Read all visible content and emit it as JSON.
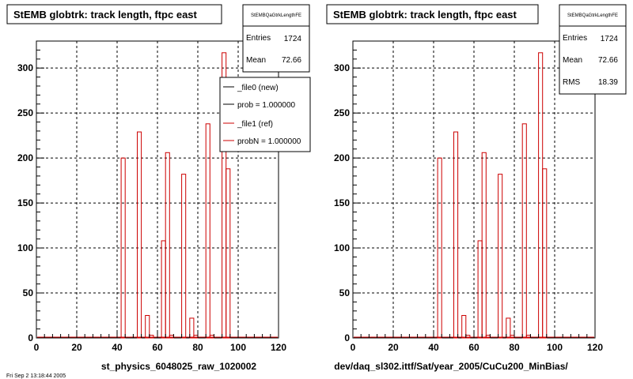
{
  "chart_data": [
    {
      "type": "bar",
      "title": "StEMB globtrk: track length, ftpc east",
      "xlabel": "st_physics_6048025_raw_1020002",
      "xlim": [
        0,
        120
      ],
      "ylim": [
        0,
        330
      ],
      "x_ticks": [
        "0",
        "20",
        "40",
        "60",
        "80",
        "100",
        "120"
      ],
      "y_ticks": [
        "0",
        "50",
        "100",
        "150",
        "200",
        "250",
        "300"
      ],
      "grid": true,
      "bin_width": 2,
      "series": [
        {
          "name": "_file1 (ref)",
          "color": "#cc0000",
          "bins": [
            [
              42,
              200
            ],
            [
              50,
              229
            ],
            [
              54,
              25
            ],
            [
              56,
              3
            ],
            [
              62,
              108
            ],
            [
              64,
              206
            ],
            [
              66,
              3
            ],
            [
              72,
              182
            ],
            [
              76,
              22
            ],
            [
              78,
              3
            ],
            [
              84,
              238
            ],
            [
              86,
              3
            ],
            [
              92,
              317
            ],
            [
              94,
              188
            ]
          ]
        }
      ],
      "stats": {
        "name": "StEMBQaGtrkLengthFE",
        "entries_label": "Entries",
        "entries": "1724",
        "mean_label": "Mean",
        "mean": "72.66"
      },
      "legend": {
        "entries": [
          {
            "label": "_file0 (new)",
            "color": "#000000"
          },
          {
            "label": "prob = 1.000000",
            "color": "#000000"
          },
          {
            "label": "_file1 (ref)",
            "color": "#cc0000"
          },
          {
            "label": "probN = 1.000000",
            "color": "#cc0000"
          }
        ]
      },
      "footer_text": "Fri Sep 2 13:18:44 2005"
    },
    {
      "type": "bar",
      "title": "StEMB globtrk: track length, ftpc east",
      "xlabel": "dev/daq_sl302.ittf/Sat/year_2005/CuCu200_MinBias/",
      "xlim": [
        0,
        120
      ],
      "ylim": [
        0,
        330
      ],
      "x_ticks": [
        "0",
        "20",
        "40",
        "60",
        "80",
        "100",
        "120"
      ],
      "y_ticks": [
        "0",
        "50",
        "100",
        "150",
        "200",
        "250",
        "300"
      ],
      "grid": true,
      "bin_width": 2,
      "series": [
        {
          "name": "_file1 (ref)",
          "color": "#cc0000",
          "bins": [
            [
              42,
              200
            ],
            [
              50,
              229
            ],
            [
              54,
              25
            ],
            [
              56,
              3
            ],
            [
              62,
              108
            ],
            [
              64,
              206
            ],
            [
              66,
              3
            ],
            [
              72,
              182
            ],
            [
              76,
              22
            ],
            [
              78,
              3
            ],
            [
              84,
              238
            ],
            [
              86,
              3
            ],
            [
              92,
              317
            ],
            [
              94,
              188
            ]
          ]
        }
      ],
      "stats": {
        "name": "StEMBQaGtrkLengthFE",
        "entries_label": "Entries",
        "entries": "1724",
        "mean_label": "Mean",
        "mean": "72.66",
        "rms_label": "RMS",
        "rms": "18.39"
      }
    }
  ]
}
